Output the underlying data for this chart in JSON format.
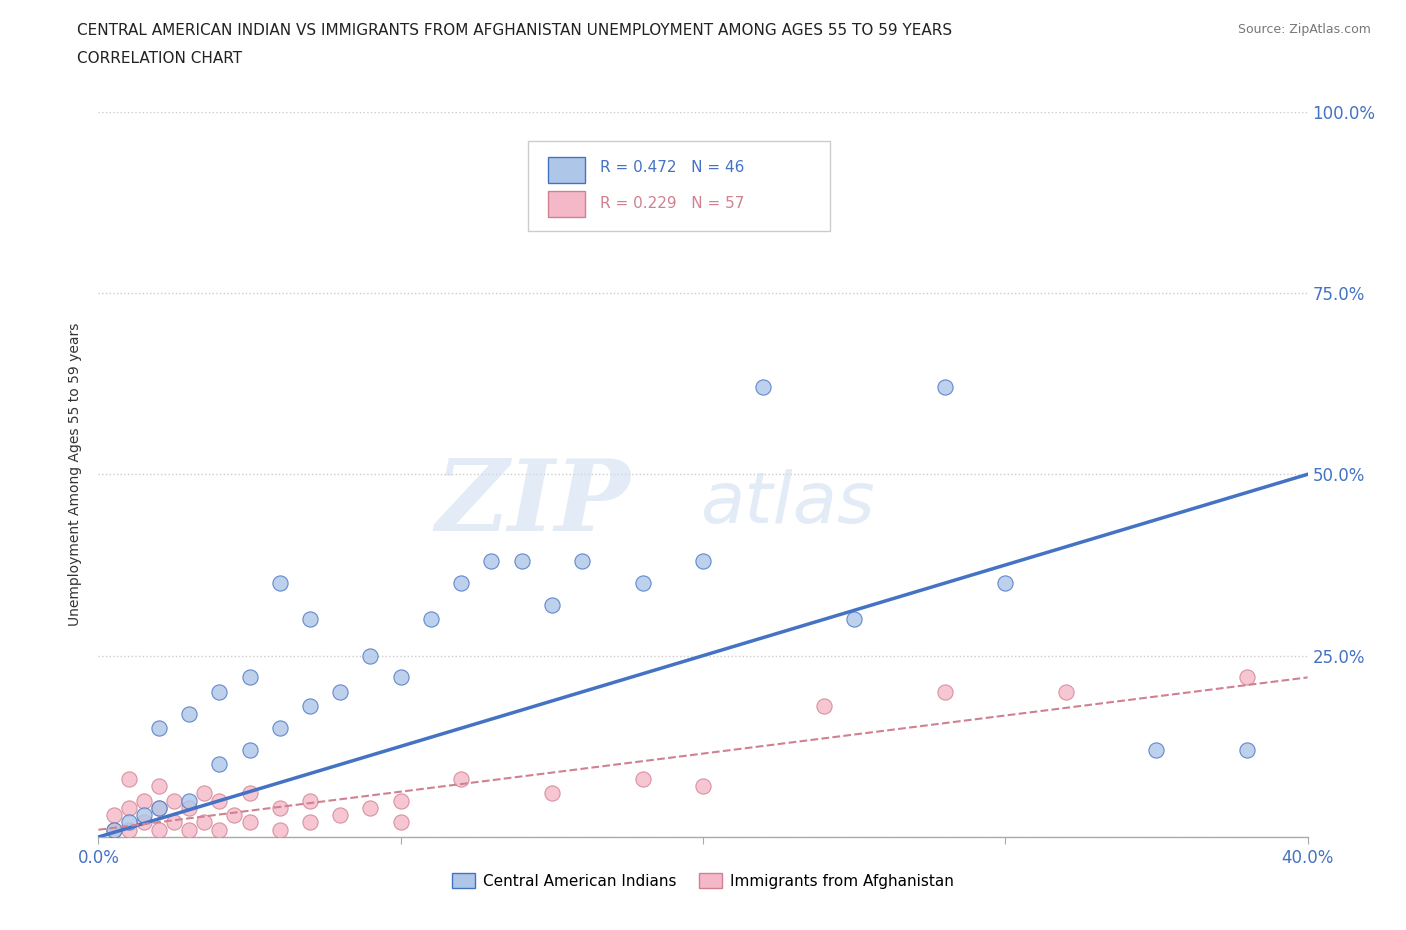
{
  "title_line1": "CENTRAL AMERICAN INDIAN VS IMMIGRANTS FROM AFGHANISTAN UNEMPLOYMENT AMONG AGES 55 TO 59 YEARS",
  "title_line2": "CORRELATION CHART",
  "source": "Source: ZipAtlas.com",
  "ylabel": "Unemployment Among Ages 55 to 59 years",
  "xlim": [
    0.0,
    0.4
  ],
  "ylim": [
    0.0,
    1.0
  ],
  "xticks": [
    0.0,
    0.1,
    0.2,
    0.3,
    0.4
  ],
  "yticks": [
    0.0,
    0.25,
    0.5,
    0.75,
    1.0
  ],
  "blue_R": 0.472,
  "blue_N": 46,
  "pink_R": 0.229,
  "pink_N": 57,
  "blue_color": "#aec6e8",
  "pink_color": "#f4b8c8",
  "blue_line_color": "#4472c4",
  "pink_line_color": "#d08090",
  "watermark_zip": "ZIP",
  "watermark_atlas": "atlas",
  "blue_scatter_x": [
    0.005,
    0.01,
    0.015,
    0.02,
    0.02,
    0.03,
    0.03,
    0.04,
    0.04,
    0.05,
    0.05,
    0.06,
    0.06,
    0.07,
    0.07,
    0.08,
    0.09,
    0.1,
    0.11,
    0.12,
    0.13,
    0.14,
    0.15,
    0.16,
    0.18,
    0.2,
    0.25,
    0.3,
    0.35,
    0.38,
    0.22,
    0.28
  ],
  "blue_scatter_y": [
    0.01,
    0.02,
    0.03,
    0.04,
    0.15,
    0.05,
    0.17,
    0.1,
    0.2,
    0.12,
    0.22,
    0.15,
    0.35,
    0.18,
    0.3,
    0.2,
    0.25,
    0.22,
    0.3,
    0.35,
    0.38,
    0.38,
    0.32,
    0.38,
    0.35,
    0.38,
    0.3,
    0.35,
    0.12,
    0.12,
    0.62,
    0.62
  ],
  "pink_scatter_x": [
    0.005,
    0.005,
    0.01,
    0.01,
    0.01,
    0.015,
    0.015,
    0.02,
    0.02,
    0.02,
    0.025,
    0.025,
    0.03,
    0.03,
    0.035,
    0.035,
    0.04,
    0.04,
    0.045,
    0.05,
    0.05,
    0.06,
    0.06,
    0.07,
    0.07,
    0.08,
    0.09,
    0.1,
    0.1,
    0.12,
    0.15,
    0.18,
    0.2,
    0.24,
    0.28,
    0.32,
    0.38
  ],
  "pink_scatter_y": [
    0.01,
    0.03,
    0.01,
    0.04,
    0.08,
    0.02,
    0.05,
    0.01,
    0.04,
    0.07,
    0.02,
    0.05,
    0.01,
    0.04,
    0.02,
    0.06,
    0.01,
    0.05,
    0.03,
    0.02,
    0.06,
    0.01,
    0.04,
    0.02,
    0.05,
    0.03,
    0.04,
    0.02,
    0.05,
    0.08,
    0.06,
    0.08,
    0.07,
    0.18,
    0.2,
    0.2,
    0.22
  ],
  "blue_trend_x": [
    0.0,
    0.4
  ],
  "blue_trend_y": [
    0.0,
    0.5
  ],
  "pink_trend_x": [
    0.0,
    0.4
  ],
  "pink_trend_y": [
    0.01,
    0.22
  ],
  "background_color": "#ffffff",
  "grid_color": "#cccccc",
  "tick_color": "#4472c4",
  "title_fontsize": 11,
  "source_fontsize": 9,
  "legend_fontsize": 11
}
